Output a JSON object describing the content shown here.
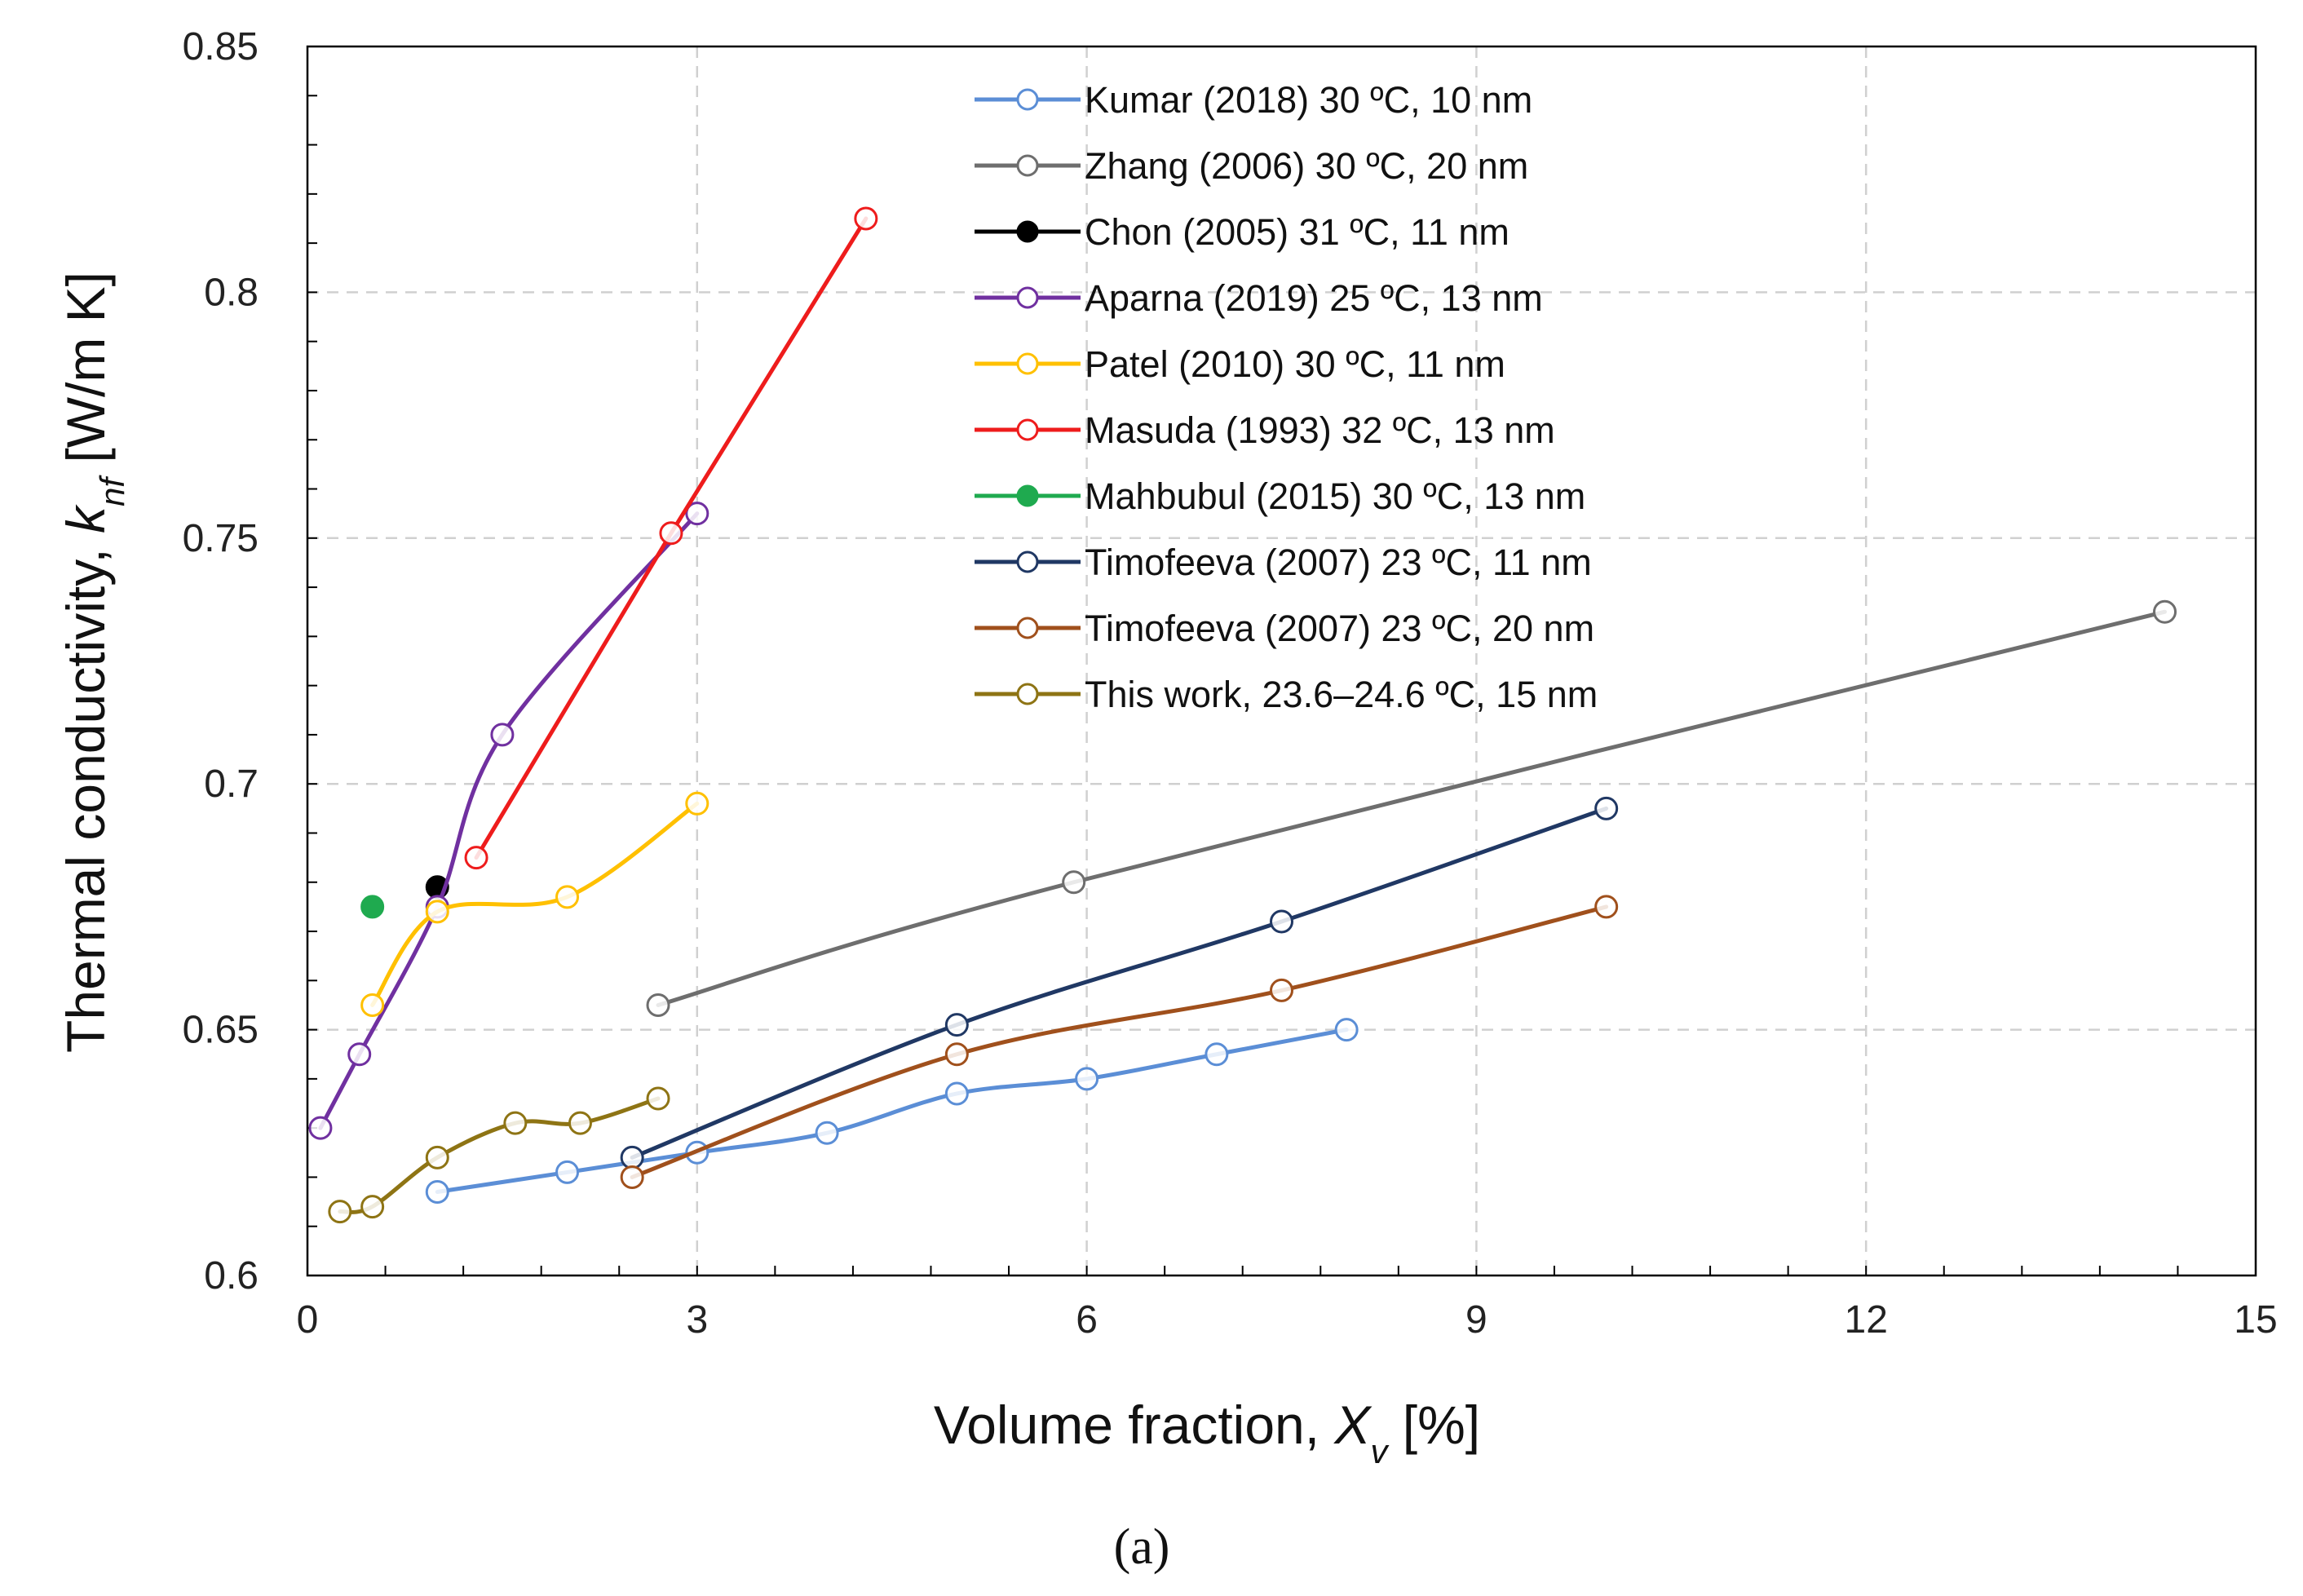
{
  "chart_data": {
    "type": "line",
    "xlabel": "Volume fraction, X_v [%]",
    "ylabel": "Thermal conductivity, k_nf [W/m K]",
    "xlabel_parts": {
      "prefix": "Volume fraction, ",
      "symbol": "X",
      "subscript": "v",
      "suffix": " [%]"
    },
    "ylabel_parts": {
      "prefix": "Thermal conductivity, ",
      "symbol": "k",
      "subscript": "nf",
      "suffix": " [W/m K]"
    },
    "panel_label": "(a)",
    "xlim": [
      0,
      15
    ],
    "ylim": [
      0.6,
      0.85
    ],
    "x_ticks": [
      0,
      3,
      6,
      9,
      12,
      15
    ],
    "y_ticks": [
      0.6,
      0.65,
      0.7,
      0.75,
      0.8,
      0.85
    ],
    "x_tick_labels": [
      "0",
      "3",
      "6",
      "9",
      "12",
      "15"
    ],
    "y_tick_labels": [
      "0.6",
      "0.65",
      "0.7",
      "0.75",
      "0.8",
      "0.85"
    ],
    "grid": true,
    "legend_position": "top-center",
    "series": [
      {
        "name": "Kumar (2018) 30 ºC, 10 nm",
        "color": "#5b8ed6",
        "marker": "open",
        "smooth": true,
        "x": [
          1.0,
          2.0,
          3.0,
          4.0,
          5.0,
          6.0,
          7.0,
          8.0
        ],
        "y": [
          0.617,
          0.621,
          0.625,
          0.629,
          0.637,
          0.64,
          0.645,
          0.65
        ]
      },
      {
        "name": "Zhang (2006) 30 ºC, 20 nm",
        "color": "#6e6e6e",
        "marker": "open",
        "smooth": true,
        "x": [
          2.7,
          5.9,
          14.3
        ],
        "y": [
          0.655,
          0.68,
          0.735
        ]
      },
      {
        "name": "Chon (2005) 31 ºC, 11 nm",
        "color": "#000000",
        "marker": "filled",
        "smooth": false,
        "x": [
          1.0
        ],
        "y": [
          0.679
        ]
      },
      {
        "name": "Aparna (2019) 25 ºC, 13 nm",
        "color": "#7030a0",
        "marker": "open",
        "smooth": true,
        "x": [
          0.1,
          0.4,
          1.0,
          1.5,
          3.0
        ],
        "y": [
          0.63,
          0.645,
          0.675,
          0.71,
          0.755
        ]
      },
      {
        "name": "Patel (2010) 30 ºC, 11 nm",
        "color": "#ffc000",
        "marker": "open",
        "smooth": true,
        "x": [
          0.5,
          1.0,
          2.0,
          3.0
        ],
        "y": [
          0.655,
          0.674,
          0.677,
          0.696
        ]
      },
      {
        "name": "Masuda (1993) 32 ºC, 13 nm",
        "color": "#ee1c1c",
        "marker": "open",
        "smooth": false,
        "x": [
          1.3,
          2.8,
          4.3
        ],
        "y": [
          0.685,
          0.751,
          0.815
        ]
      },
      {
        "name": "Mahbubul (2015) 30 ºC, 13 nm",
        "color": "#1faa4f",
        "marker": "filled",
        "smooth": false,
        "x": [
          0.5
        ],
        "y": [
          0.675
        ]
      },
      {
        "name": "Timofeeva (2007) 23 ºC, 11 nm",
        "color": "#203864",
        "marker": "open",
        "smooth": true,
        "x": [
          2.5,
          5.0,
          7.5,
          10.0
        ],
        "y": [
          0.624,
          0.651,
          0.672,
          0.695
        ]
      },
      {
        "name": "Timofeeva (2007) 23 ºC, 20 nm",
        "color": "#a0501c",
        "marker": "open",
        "smooth": true,
        "x": [
          2.5,
          5.0,
          7.5,
          10.0
        ],
        "y": [
          0.62,
          0.645,
          0.658,
          0.675
        ]
      },
      {
        "name": "This work, 23.6–24.6 ºC, 15 nm",
        "color": "#8e7414",
        "marker": "open",
        "smooth": true,
        "x": [
          0.25,
          0.5,
          1.0,
          1.6,
          2.1,
          2.7
        ],
        "y": [
          0.613,
          0.614,
          0.624,
          0.631,
          0.631,
          0.636
        ]
      }
    ]
  }
}
